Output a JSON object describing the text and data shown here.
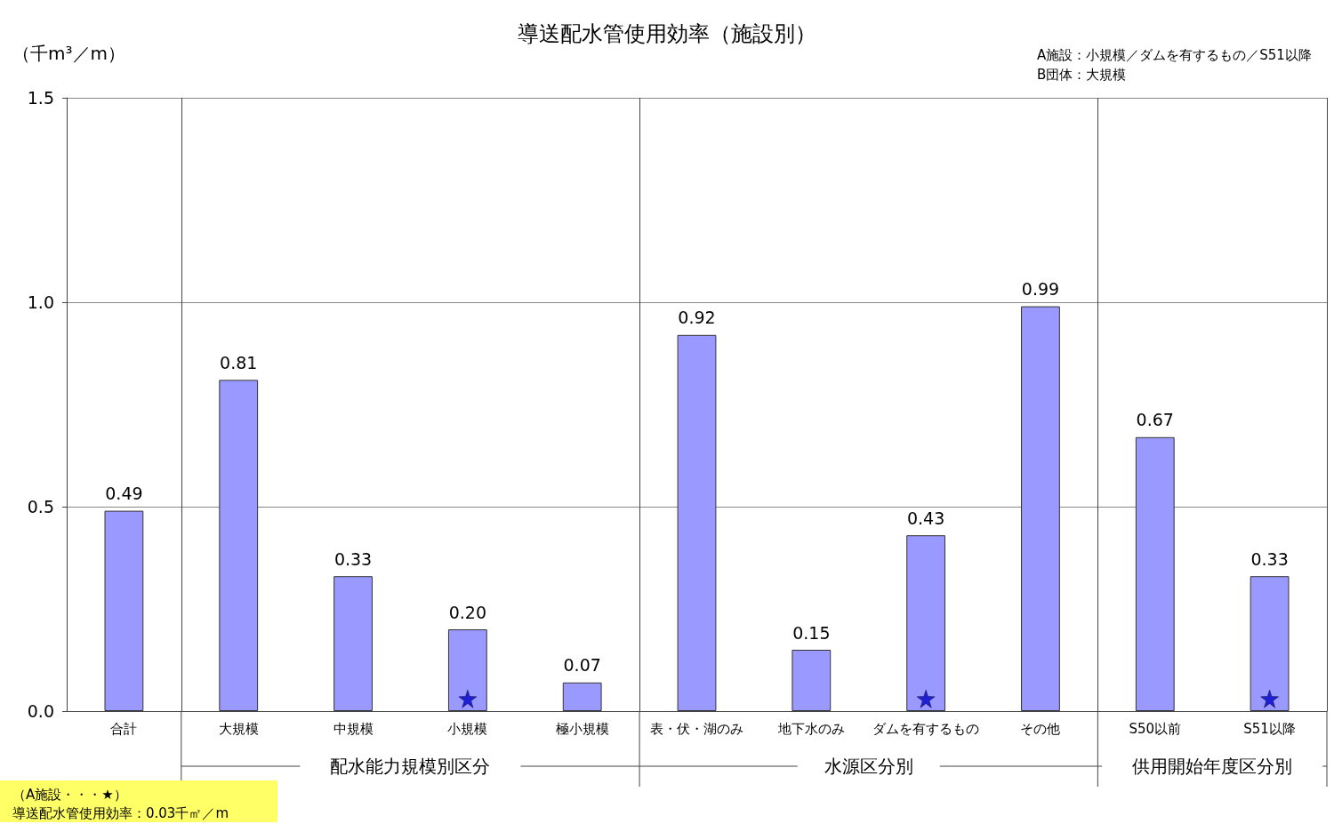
{
  "chart_data": {
    "type": "bar",
    "title": "導送配水管使用効率（施設別）",
    "ylabel": "（千m³／m）",
    "categories": [
      "合計",
      "大規模",
      "中規模",
      "小規模",
      "極小規模",
      "表・伏・湖のみ",
      "地下水のみ",
      "ダムを有するもの",
      "その他",
      "S50以前",
      "S51以降"
    ],
    "series": [
      {
        "color": "#9999ff",
        "values": [
          0.49,
          0.81,
          0.33,
          0.2,
          0.07,
          0.92,
          0.15,
          0.43,
          0.99,
          0.67,
          0.33
        ]
      },
      {
        "type": "scatter",
        "color": "#0000cc",
        "x": [
          "小規模",
          "ダムを有するもの",
          "S51以降"
        ],
        "values": [
          0.03,
          0.03,
          0.03
        ]
      }
    ],
    "ylim": [
      0,
      1.5
    ],
    "yticks": [
      {
        "value": 0,
        "label": "0.0"
      },
      {
        "value": 0.5,
        "label": "0.5"
      },
      {
        "value": 1,
        "label": "1.0"
      },
      {
        "value": 1.5,
        "label": "1.5"
      }
    ],
    "grid": "y",
    "marker": "star",
    "value_labels": [
      "0.49",
      "0.81",
      "0.33",
      "0.20",
      "0.07",
      "0.92",
      "0.15",
      "0.43",
      "0.99",
      "0.67",
      "0.33"
    ],
    "annotations": [
      "A施設：小規模／ダムを有するもの／S51以降",
      "B団体：大規模",
      "配水能力規模別区分",
      "水源区分別",
      "供用開始年度区分別",
      "（A施設・・・★）",
      "導送配水管使用効率：0.03千㎡／m"
    ]
  }
}
